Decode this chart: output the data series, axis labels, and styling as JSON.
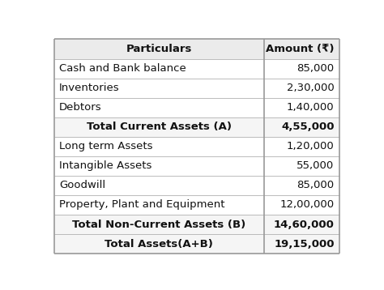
{
  "rows": [
    {
      "particulars": "Particulars",
      "amount": "Amount (₹)",
      "is_header": true,
      "bold": true,
      "align_particulars": "center"
    },
    {
      "particulars": "Cash and Bank balance",
      "amount": "85,000",
      "is_header": false,
      "bold": false,
      "align_particulars": "left"
    },
    {
      "particulars": "Inventories",
      "amount": "2,30,000",
      "is_header": false,
      "bold": false,
      "align_particulars": "left"
    },
    {
      "particulars": "Debtors",
      "amount": "1,40,000",
      "is_header": false,
      "bold": false,
      "align_particulars": "left"
    },
    {
      "particulars": "Total Current Assets (A)",
      "amount": "4,55,000",
      "is_header": false,
      "bold": true,
      "align_particulars": "center"
    },
    {
      "particulars": "Long term Assets",
      "amount": "1,20,000",
      "is_header": false,
      "bold": false,
      "align_particulars": "left"
    },
    {
      "particulars": "Intangible Assets",
      "amount": "55,000",
      "is_header": false,
      "bold": false,
      "align_particulars": "left"
    },
    {
      "particulars": "Goodwill",
      "amount": "85,000",
      "is_header": false,
      "bold": false,
      "align_particulars": "left"
    },
    {
      "particulars": "Property, Plant and Equipment",
      "amount": "12,00,000",
      "is_header": false,
      "bold": false,
      "align_particulars": "left"
    },
    {
      "particulars": "Total Non-Current Assets (B)",
      "amount": "14,60,000",
      "is_header": false,
      "bold": true,
      "align_particulars": "center"
    },
    {
      "particulars": "Total Assets(A+B)",
      "amount": "19,15,000",
      "is_header": false,
      "bold": true,
      "align_particulars": "center"
    }
  ],
  "header_bg": "#ebebeb",
  "total_bg": "#f5f5f5",
  "normal_bg": "#ffffff",
  "border_color": "#bbbbbb",
  "text_color": "#111111",
  "col_split": 0.735,
  "font_size": 9.5,
  "figure_bg": "#ffffff",
  "outer_border_color": "#999999"
}
